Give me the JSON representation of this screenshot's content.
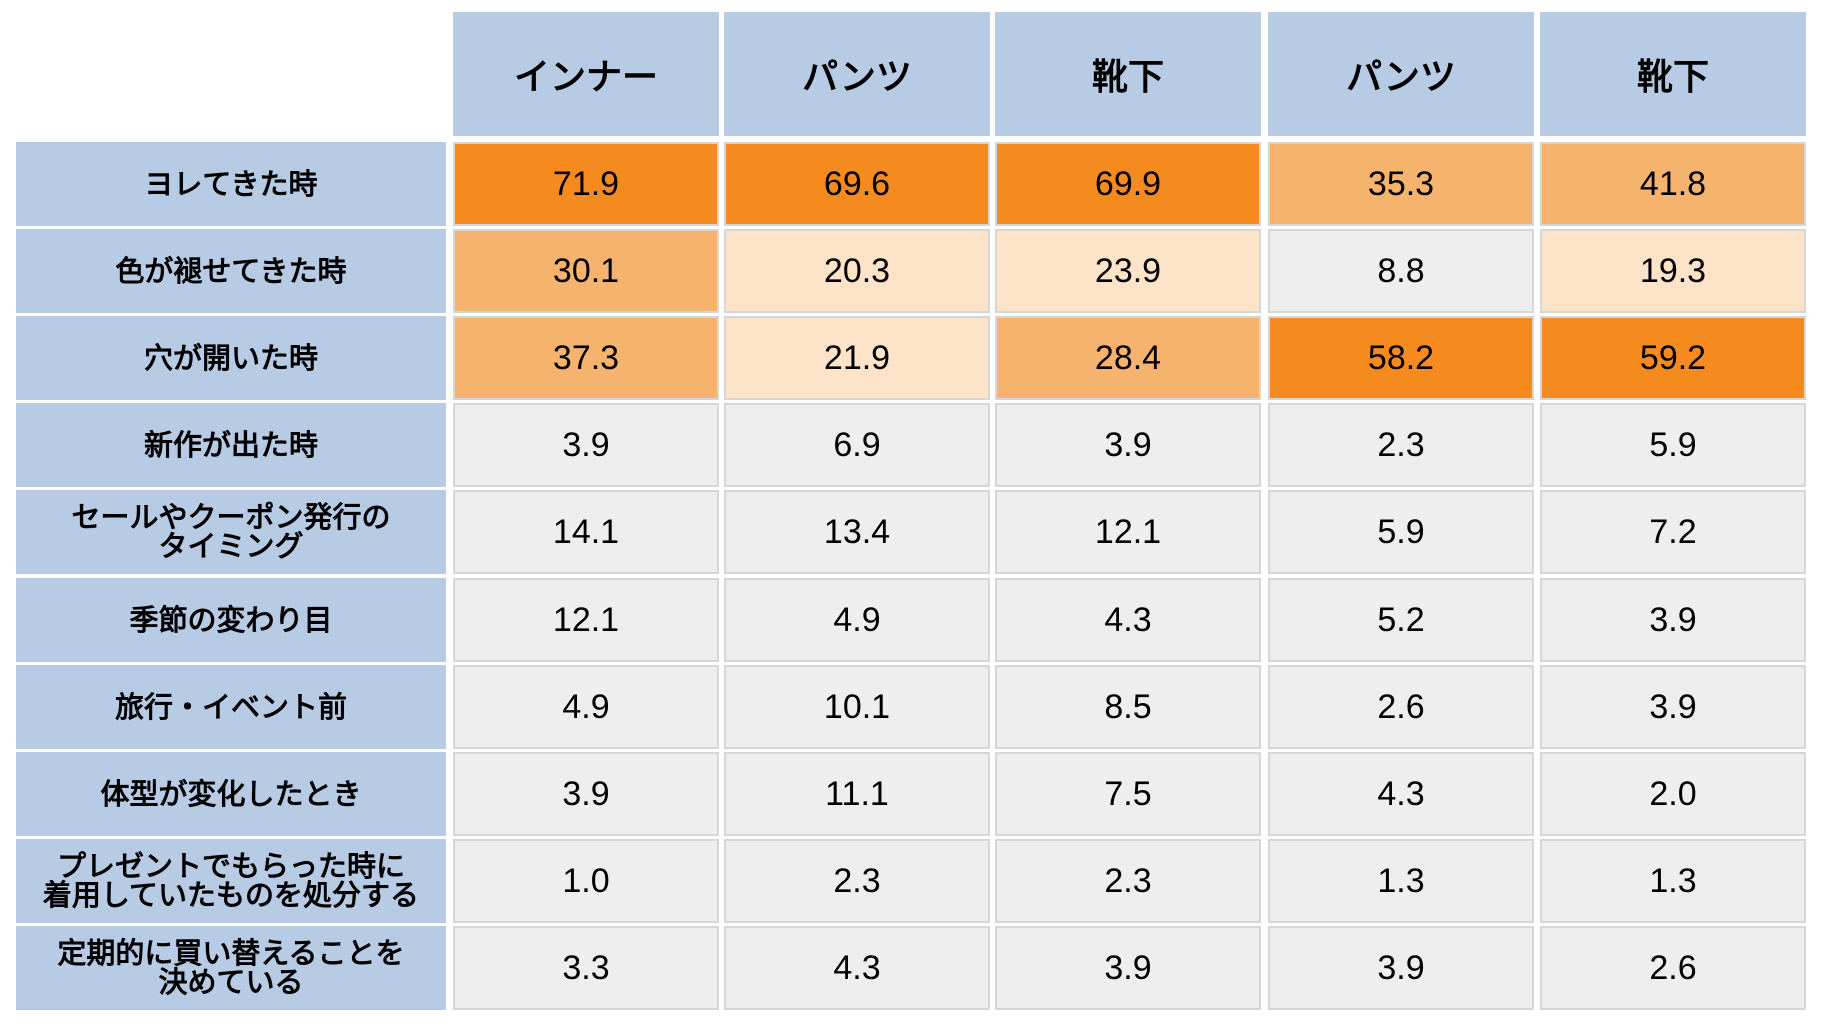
{
  "chart_data": {
    "type": "table",
    "columns": [
      "インナー",
      "パンツ",
      "靴下",
      "パンツ",
      "靴下"
    ],
    "rows": [
      {
        "label": "ヨレてきた時",
        "values": [
          "71.9",
          "69.6",
          "69.9",
          "35.3",
          "41.8"
        ]
      },
      {
        "label": "色が褪せてきた時",
        "values": [
          "30.1",
          "20.3",
          "23.9",
          "8.8",
          "19.3"
        ]
      },
      {
        "label": "穴が開いた時",
        "values": [
          "37.3",
          "21.9",
          "28.4",
          "58.2",
          "59.2"
        ]
      },
      {
        "label": "新作が出た時",
        "values": [
          "3.9",
          "6.9",
          "3.9",
          "2.3",
          "5.9"
        ]
      },
      {
        "label": "セールやクーポン発行の\nタイミング",
        "values": [
          "14.1",
          "13.4",
          "12.1",
          "5.9",
          "7.2"
        ]
      },
      {
        "label": "季節の変わり目",
        "values": [
          "12.1",
          "4.9",
          "4.3",
          "5.2",
          "3.9"
        ]
      },
      {
        "label": "旅行・イベント前",
        "values": [
          "4.9",
          "10.1",
          "8.5",
          "2.6",
          "3.9"
        ]
      },
      {
        "label": "体型が変化したとき",
        "values": [
          "3.9",
          "11.1",
          "7.5",
          "4.3",
          "2.0"
        ]
      },
      {
        "label": "プレゼントでもらった時に\n着用していたものを処分する",
        "values": [
          "1.0",
          "2.3",
          "2.3",
          "1.3",
          "1.3"
        ]
      },
      {
        "label": "定期的に買い替えることを\n決めている",
        "values": [
          "3.3",
          "4.3",
          "3.9",
          "3.9",
          "2.6"
        ]
      }
    ],
    "colors": {
      "header": "#b7cbe5",
      "high": "#f58a1f",
      "medium": "#f5b36e",
      "low": "#fde3c7",
      "base": "#eeeeee"
    },
    "thresholds": {
      "high": 50,
      "medium": 25,
      "low": 15
    }
  }
}
